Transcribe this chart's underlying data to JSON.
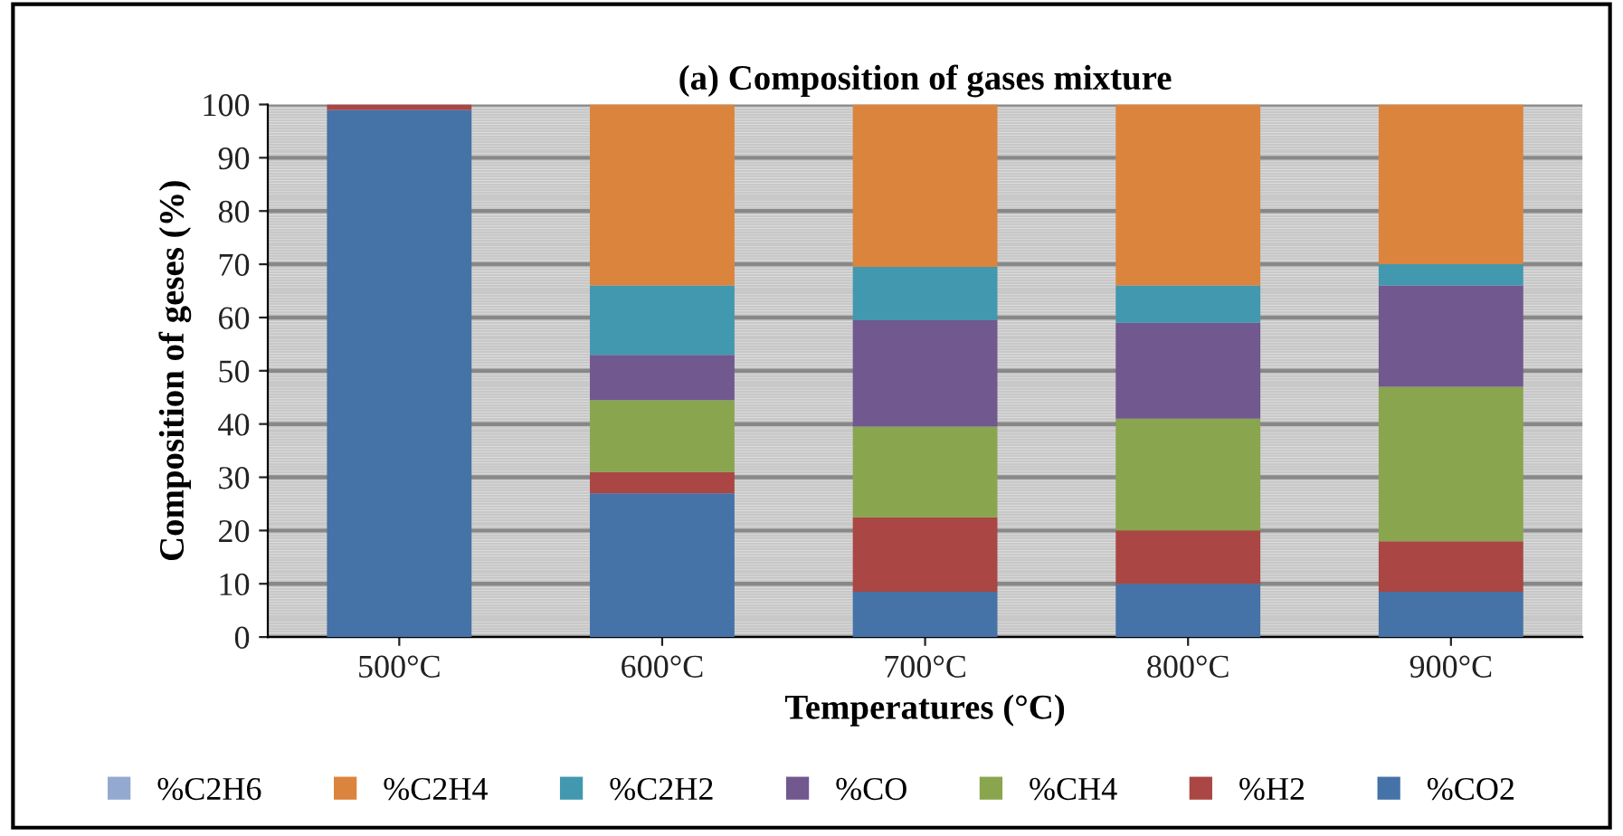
{
  "chart_data": {
    "type": "bar",
    "stacked": true,
    "title": "(a) Composition of gases mixture",
    "xlabel": "Temperatures (°C)",
    "ylabel": "Composition of geses (%)",
    "categories": [
      "500°C",
      "600°C",
      "700°C",
      "800°C",
      "900°C"
    ],
    "series": [
      {
        "name": "%CO2",
        "color": "#4572a7",
        "values": [
          99,
          27,
          8.5,
          10,
          8.5
        ]
      },
      {
        "name": "%H2",
        "color": "#aa4643",
        "values": [
          1,
          4,
          14,
          10,
          9.5
        ]
      },
      {
        "name": "%CH4",
        "color": "#89a54e",
        "values": [
          0,
          13.5,
          17,
          21,
          29
        ]
      },
      {
        "name": "%CO",
        "color": "#71588f",
        "values": [
          0,
          8.5,
          20,
          18,
          19
        ]
      },
      {
        "name": "%C2H2",
        "color": "#4198af",
        "values": [
          0,
          13,
          10,
          7,
          4
        ]
      },
      {
        "name": "%C2H4",
        "color": "#db843d",
        "values": [
          0,
          34,
          30.5,
          34,
          30
        ]
      },
      {
        "name": "%C2H6",
        "color": "#93a9cf",
        "values": [
          0,
          0,
          0,
          null,
          0
        ]
      }
    ],
    "ylim": [
      0,
      100
    ],
    "yticks": [
      0,
      10,
      20,
      30,
      40,
      50,
      60,
      70,
      80,
      90,
      100
    ],
    "grid": "y",
    "legend": "bottom"
  }
}
